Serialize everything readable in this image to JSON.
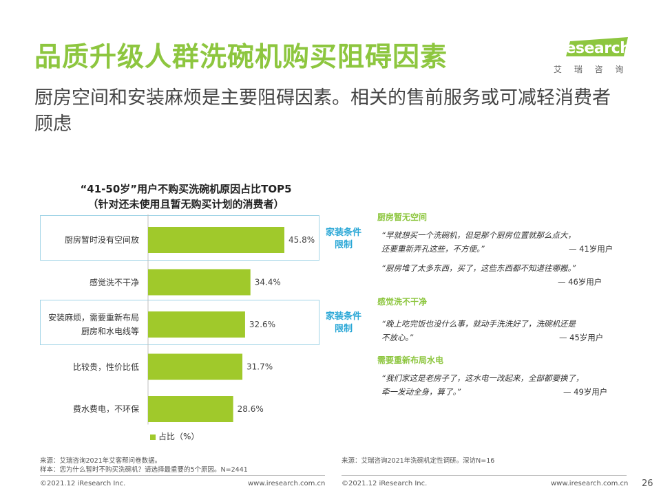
{
  "header": {
    "title": "品质升级人群洗碗机购买阻碍因素",
    "subtitle": "厨房空间和安装麻烦是主要阻碍因素。相关的售前服务或可减轻消费者顾虑",
    "logo_text": "iResearch",
    "logo_cn": "艾 瑞 咨 询"
  },
  "chart_data": {
    "type": "bar",
    "orientation": "horizontal",
    "title": "“41-50岁”用户不购买洗碗机原因占比TOP5",
    "subtitle": "（针对还未使用且暂无购买计划的消费者）",
    "categories": [
      "厨房暂时没有空间放",
      "感觉洗不干净",
      "安装麻烦，需要重新布局厨房和水电线等",
      "比较贵，性价比低",
      "费水费电，不环保"
    ],
    "category_lines": [
      [
        "厨房暂时没有空间放"
      ],
      [
        "感觉洗不干净"
      ],
      [
        "安装麻烦，需要重新布局",
        "厨房和水电线等"
      ],
      [
        "比较贵，性价比低"
      ],
      [
        "费水费电，不环保"
      ]
    ],
    "values": [
      45.8,
      34.4,
      32.6,
      31.7,
      28.6
    ],
    "value_labels": [
      "45.8%",
      "34.4%",
      "32.6%",
      "31.7%",
      "28.6%"
    ],
    "xlim": [
      0,
      100
    ],
    "legend": "占比（%）",
    "bar_color": "#a0c92b",
    "highlight_tags": [
      [
        "家装条件",
        "限制"
      ],
      [
        "家装条件",
        "限制"
      ]
    ]
  },
  "quotes": {
    "sections": [
      {
        "heading": "厨房暂无空间",
        "items": [
          {
            "lines": [
              "“早就想买一个洗碗机，但是那个厨房位置就那么点大，",
              "还要重新弄孔这些，不方便。”"
            ],
            "who": "— 41岁用户"
          },
          {
            "lines": [
              "“厨房堆了太多东西，买了，这些东西都不知道往哪搬。”"
            ],
            "who": "— 46岁用户"
          }
        ]
      },
      {
        "heading": "感觉洗不干净",
        "items": [
          {
            "lines": [
              "“晚上吃完饭也没什么事，就动手洗洗好了，洗碗机还是",
              "不放心。”"
            ],
            "who": "— 45岁用户"
          }
        ]
      },
      {
        "heading": "需要重新布局水电",
        "items": [
          {
            "lines": [
              "“我们家这是老房子了，这水电一改起来，全部都要换了，",
              "牵一发动全身，算了。”"
            ],
            "who": "— 49岁用户"
          }
        ]
      }
    ]
  },
  "footer": {
    "source_left_1": "来源：艾瑞咨询2021年艾客帮问卷数据。",
    "source_left_2": "样本：您为什么暂时不购买洗碗机？请选择最重要的5个原因。N=2441",
    "source_right": "来源：艾瑞咨询2021年洗碗机定性调研。深访N=16",
    "copyright_left": "©2021.12 iResearch Inc.",
    "url_left": "www.iresearch.com.cn",
    "copyright_right": "©2021.12 iResearch Inc.",
    "url_right": "www.iresearch.com.cn",
    "page": "26"
  },
  "colors": {
    "accent": "#8dc63f",
    "bar": "#a0c92b",
    "tag": "#2aa7d6",
    "box_border": "#9fd3e6"
  }
}
